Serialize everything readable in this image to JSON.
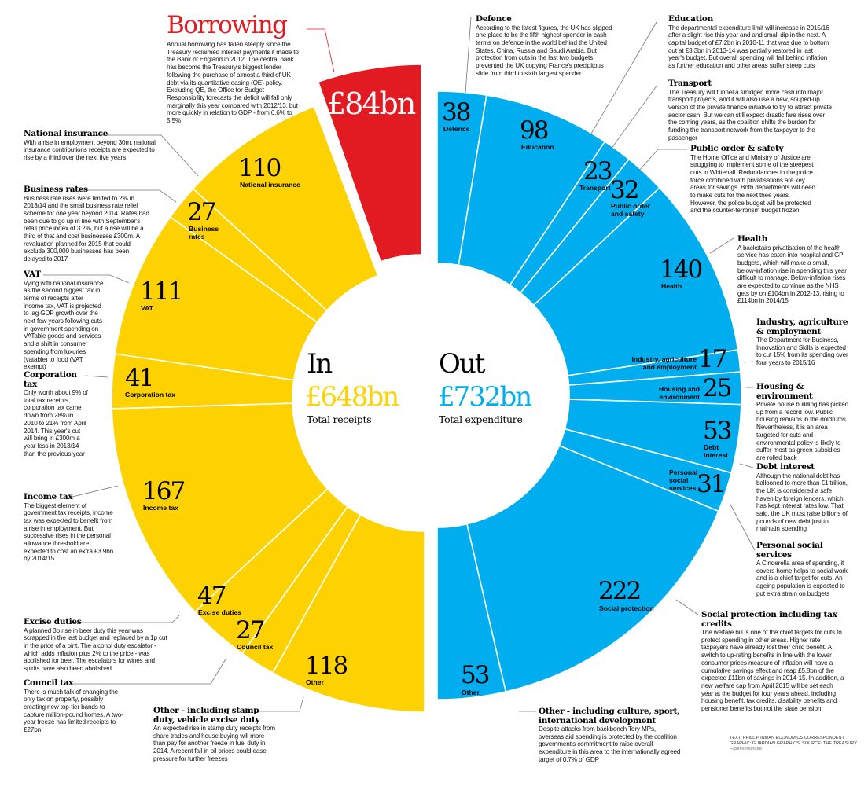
{
  "chart_data": {
    "type": "pie",
    "unit": "£bn",
    "colors": {
      "receipts": "#FDD200",
      "borrowing": "#E21B23",
      "expenditure": "#00AEEF"
    },
    "receipts": {
      "heading": "In",
      "total": "£648bn",
      "total_label": "Total receipts",
      "categories": [
        "Other",
        "Council tax",
        "Excise duties",
        "Income tax",
        "Corporation tax",
        "VAT",
        "Business rates",
        "National insurance"
      ],
      "labels": [
        "Other",
        "Council tax",
        "Excise duties",
        "Income tax",
        "Corporation tax",
        "VAT",
        "Business\nrates",
        "National insurance"
      ],
      "values": [
        118,
        27,
        47,
        167,
        41,
        111,
        27,
        110
      ]
    },
    "borrowing": {
      "title": "Borrowing",
      "value": 84,
      "value_label": "£84bn"
    },
    "expenditure": {
      "heading": "Out",
      "total": "£732bn",
      "total_label": "Total expenditure",
      "categories": [
        "Defence",
        "Education",
        "Transport",
        "Public order and safety",
        "Health",
        "Industry, agriculture and employment",
        "Housing and environment",
        "Debt interest",
        "Personal social services",
        "Social protection",
        "Other"
      ],
      "labels": [
        "Defence",
        "Education",
        "Transport",
        "Public order\nand safety",
        "Health",
        "Industry, agriculture\nand employment",
        "Housing and\nenvironment",
        "Debt\ninterest",
        "Personal\nsocial\nservices",
        "Social protection",
        "Other"
      ],
      "values": [
        38,
        98,
        23,
        32,
        140,
        17,
        25,
        53,
        31,
        222,
        53
      ]
    }
  },
  "notes": {
    "borrowing": "Annual borrowing has fallen steeply since the Treasury reclaimed interest payments it made to the Bank of England in 2012. The central bank has become the Treasury's biggest lender following the purchase of almost a third of UK debt via its quantitative easing (QE) policy. Excluding QE, the Office for Budget Responsibility forecasts the deficit will fall only marginally this year compared with 2012/13, but more quickly in relation to GDP - from 6.6% to 5.5%",
    "ni": {
      "title": "National insurance",
      "body": "With a rise in employment beyond 30m, national insurance contributions receipts are expected to rise by a third over the next five years"
    },
    "business": {
      "title": "Business rates",
      "body": "Business rate rises were limited to 2% in 2013/14 and the small business rate relief scheme for one year beyond 2014. Rates had been due to go up in line with September's retail price index of 3.2%, but a rise will be a third of that and cost businesses £300m. A revaluation planned for 2015 that could exclude 300,000 businesses has been delayed to 2017"
    },
    "vat": {
      "title": "VAT",
      "body": "Vying with national insurance as the second biggest tax in terms of receipts after income tax, VAT is projected to lag GDP growth over the next few years following cuts in government spending on VATable goods and services and a shift in consumer spending from luxuries (vatable) to food (VAT exempt)"
    },
    "corp": {
      "title": "Corporation tax",
      "body": "Only worth about 9% of total tax receipts, corporation tax came down from 28% in 2010 to 21% from April 2014. This year's cut will bring in £300m a year less in 2013/14 than the previous year"
    },
    "income": {
      "title": "Income tax",
      "body": "The biggest element of government tax receipts, income tax was expected to benefit from a rise in employment. But successive rises in the personal allowance threshold are expected to cost an extra £3.9bn by 2014/15"
    },
    "excise": {
      "title": "Excise duties",
      "body": "A planned 3p rise in beer duty this year was scrapped in the last budget and replaced by a 1p cut in the price of a pint. The alcohol duty escalator - which adds inflation plus 2% to the price - was abolished for beer. The escalators for wines and spirits have also been abolished"
    },
    "council": {
      "title": "Council tax",
      "body": "There is much talk of changing the only tax on property, possibly creating new top-tier bands to capture million-pound homes. A two-year freeze has limited receipts to £27bn"
    },
    "other_in": {
      "title": "Other - including stamp duty, vehicle excise duty",
      "body": "An expected rise in stamp duty receipts from share trades and house buying will more than pay for another freeze in fuel duty in 2014. A recent fall in oil prices could ease pressure for further freezes"
    },
    "defence": {
      "title": "Defence",
      "body": "According to the latest figures, the UK has slipped one place to be the fifth highest spender in cash terms on defence in the world behind the United States, China, Russia and Saudi Arabia. But protection from cuts in the last two budgets prevented the UK copying France's precipitous slide from third to sixth largest spender"
    },
    "education": {
      "title": "Education",
      "body": "The departmental expenditure limit will increase in 2015/16 after a slight rise this year and and small dip in the next. A capital budget of £7.2bn in 2010-11 that was due to bottom out at £3.3bn in 2013-14 was partially restored in last year's budget. But overall spending will fall behind inflation as further education and other areas suffer steep cuts"
    },
    "transport": {
      "title": "Transport",
      "body": "The Treasury will funnel a smidgen more cash into major transport projects, and it will also use a new, souped-up version of the private finance initiative to try to attract private sector cash. But we can still expect drastic fare rises over the coming years, as the coalition shifts the burden for funding the transport network from the taxpayer to the passenger"
    },
    "order": {
      "title": "Public order & safety",
      "body": "The Home Office and Ministry of Justice are struggling to implement some of the steepest cuts in Whitehall. Redundancies in the police force combined with privatisations are key areas for savings. Both departments will need to make cuts for the next thee years. However, the police budget will be protected and the counter-terrorism budget frozen"
    },
    "health": {
      "title": "Health",
      "body": "A backstairs privatisation of the health service has eaten into hospital and GP budgets, which will make a small, below-inflation rise in spending this year difficult to manage. Below-inflation rises are expected to continue as the NHS gets by on £104bn in 2012-13, rising to £114bn in 2014/15"
    },
    "industry": {
      "title": "Industry, agriculture & employment",
      "body": "The Department for Business, Innovation and Skills is expected to cut 15% from its spending over four years to 2015/16"
    },
    "housing": {
      "title": "Housing & environment",
      "body": "Private house building has picked up from a record low. Public housing remains in the doldrums. Nevertheless, it is an area targeted for cuts and environmental policy is likely to suffer most as green subsidies are rolled back"
    },
    "debt": {
      "title": "Debt interest",
      "body": "Although the national debt has ballooned to more than £1 trillion, the UK is considered a safe haven by foreign lenders, which has kept interest rates low. That said, the UK must raise billions of pounds of new debt just to maintain spending"
    },
    "personal": {
      "title": "Personal social services",
      "body": "A Cinderella area of spending, it covers home helps to social work and is a chief target for cuts. An ageing population is expected to put extra strain on budgets"
    },
    "social": {
      "title": "Social protection including tax credits",
      "body": "The welfare bill is one of the chief targets for cuts to protect spending in other areas. Higher rate taxpayers have already lost their child benefit. A switch to up-rating benefits in line with the lower consumer prices measure of inflation will have a cumulative savings effect and reap £5.8bn of the expected £11bn of savings in 2014-15. In addition, a new welfare cap from April 2015 will be set each year at the budget for four years ahead, including housing benefit, tax credits, disability benefits and pensioner benefits but not the state pension"
    },
    "other_out": {
      "title": "Other - including culture, sport, international development",
      "body": "Despite attacks from backbench Tory MPs, overseas aid spending is protected by the coalition government's commitment to raise overall expenditure in this area to the internationally agreed target of 0.7% of GDP"
    }
  },
  "credits": {
    "line1": "TEXT: PHILLIP INMAN ECONOMICS CORRESPONDENT",
    "line2": "GRAPHIC: GUARDIAN GRAPHICS. SOURCE: THE TREASURY",
    "line3": "Figures rounded"
  }
}
